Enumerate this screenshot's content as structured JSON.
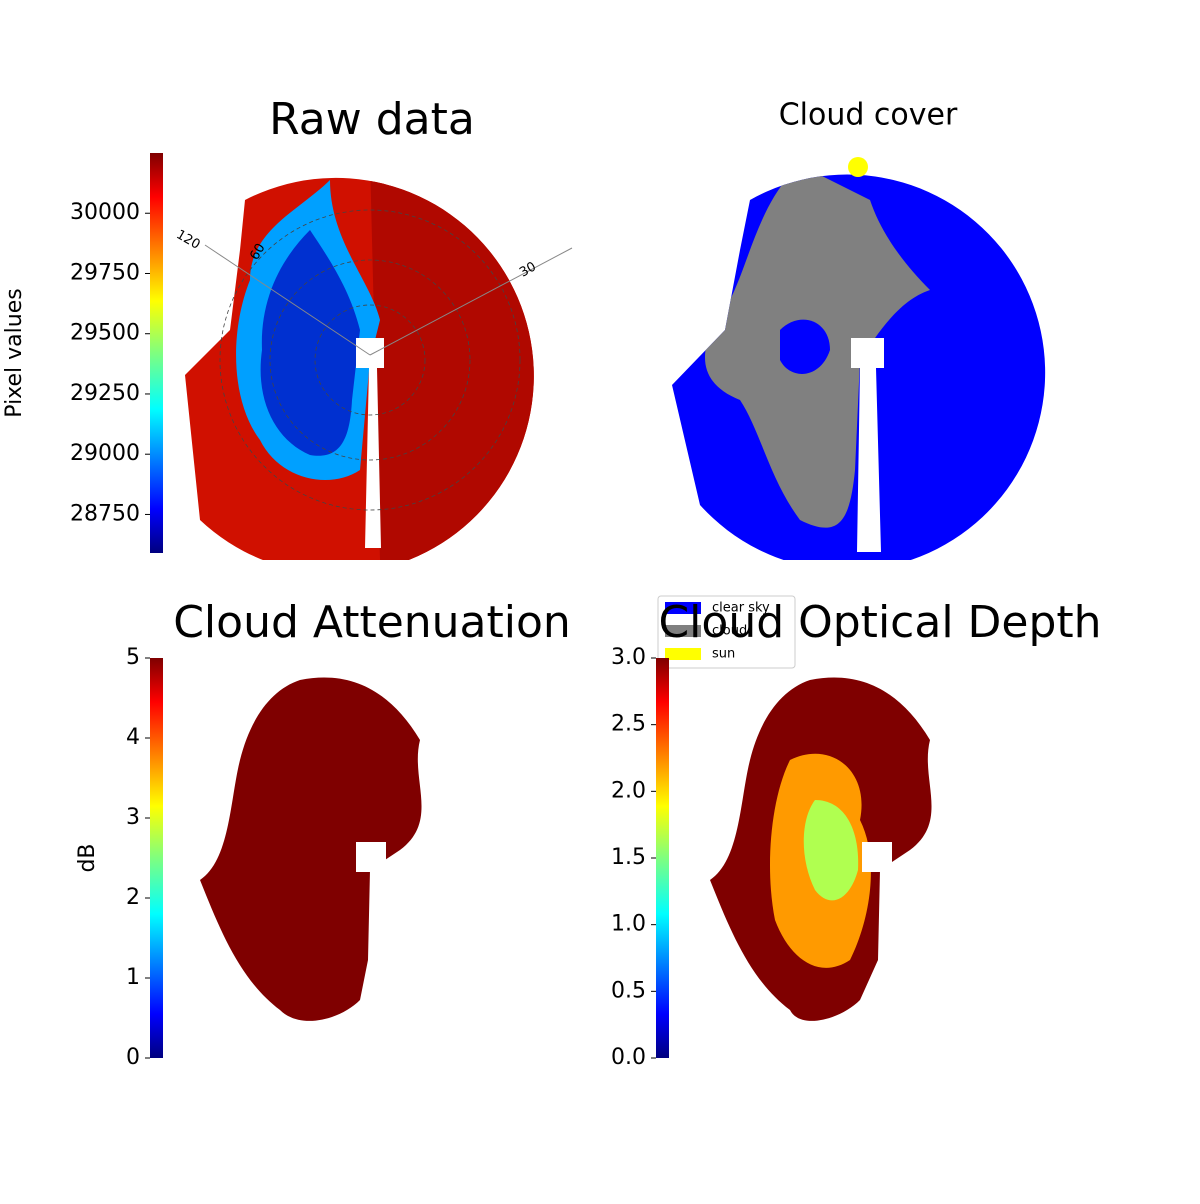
{
  "chart_data": [
    {
      "type": "image",
      "title": "Raw data",
      "colormap": "jet",
      "ylabel": "Pixel values",
      "ylim": [
        28590,
        30250
      ],
      "yticks": [
        28750,
        29000,
        29250,
        29500,
        29750,
        30000
      ],
      "annotations": [
        "120",
        "60",
        "30"
      ]
    },
    {
      "type": "image",
      "title": "Cloud cover",
      "series": [
        {
          "name": "clear sky",
          "color": "#0000ff"
        },
        {
          "name": "cloud",
          "color": "#808080"
        },
        {
          "name": "sun",
          "color": "#ffff00"
        }
      ]
    },
    {
      "type": "image",
      "title": "Cloud Attenuation",
      "colormap": "jet",
      "ylabel": "dB",
      "ylim": [
        0,
        5
      ],
      "yticks": [
        0,
        1,
        2,
        3,
        4,
        5
      ]
    },
    {
      "type": "image",
      "title": "Cloud Optical Depth",
      "colormap": "jet",
      "ylim": [
        0,
        3
      ],
      "yticks": [
        {
          "value": 0,
          "label": "0.0"
        },
        0.5,
        {
          "value": 1,
          "label": "1.0"
        },
        1.5,
        {
          "value": 2,
          "label": "2.0"
        },
        2.5,
        {
          "value": 3,
          "label": "3.0"
        }
      ]
    }
  ]
}
